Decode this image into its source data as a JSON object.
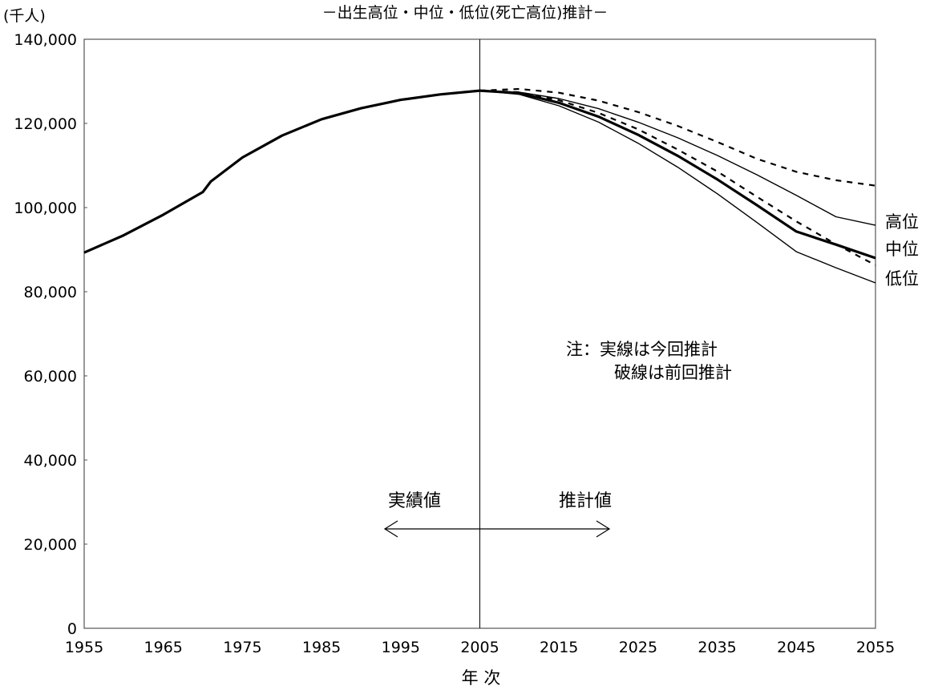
{
  "chart_data": {
    "type": "line",
    "title": "－出生高位・中位・低位(死亡高位)推計－",
    "ylabel": "(千人)",
    "xlabel": "年 次",
    "xlim": [
      1955,
      2055
    ],
    "ylim": [
      0,
      140000
    ],
    "x_ticks": [
      1955,
      1965,
      1975,
      1985,
      1995,
      2005,
      2015,
      2025,
      2035,
      2045,
      2055
    ],
    "x_tick_labels": [
      "1955",
      "1965",
      "1975",
      "1985",
      "1995",
      "2005",
      "2015",
      "2025",
      "2035",
      "2045",
      "2055"
    ],
    "y_ticks": [
      0,
      20000,
      40000,
      60000,
      80000,
      100000,
      120000,
      140000
    ],
    "y_tick_labels": [
      "0",
      "20,000",
      "40,000",
      "60,000",
      "80,000",
      "100,000",
      "120,000",
      "140,000"
    ],
    "grid": false,
    "divider_year": 2005,
    "series": [
      {
        "name": "実績値",
        "style": "solid-thick",
        "x": [
          1955,
          1960,
          1965,
          1970,
          1971,
          1975,
          1980,
          1985,
          1990,
          1995,
          2000,
          2005
        ],
        "y": [
          89300,
          93400,
          98300,
          103700,
          106200,
          111900,
          117100,
          121000,
          123600,
          125600,
          126900,
          127800
        ]
      },
      {
        "name": "高位",
        "style": "solid-thin",
        "x": [
          2005,
          2010,
          2015,
          2020,
          2025,
          2030,
          2035,
          2040,
          2045,
          2050,
          2055
        ],
        "y": [
          127800,
          127400,
          125900,
          123500,
          120300,
          116600,
          112400,
          107800,
          102900,
          97800,
          95800
        ]
      },
      {
        "name": "中位",
        "style": "solid-thick",
        "x": [
          2005,
          2010,
          2015,
          2020,
          2025,
          2030,
          2035,
          2040,
          2045,
          2050,
          2055
        ],
        "y": [
          127800,
          127200,
          124900,
          121600,
          117300,
          112300,
          106700,
          100600,
          94300,
          91200,
          88000
        ]
      },
      {
        "name": "低位",
        "style": "solid-thin",
        "x": [
          2005,
          2010,
          2015,
          2020,
          2025,
          2030,
          2035,
          2040,
          2045,
          2050,
          2055
        ],
        "y": [
          127800,
          126900,
          124200,
          120300,
          115300,
          109600,
          103300,
          96500,
          89500,
          85700,
          82100
        ]
      },
      {
        "name": "高位",
        "style": "dashed",
        "x": [
          2005,
          2010,
          2015,
          2020,
          2025,
          2030,
          2035,
          2040,
          2045,
          2050,
          2055
        ],
        "y": [
          127800,
          128200,
          127300,
          125400,
          122700,
          119400,
          115600,
          111600,
          108500,
          106500,
          105200
        ]
      },
      {
        "name": "中位",
        "style": "dashed",
        "x": [
          2005,
          2010,
          2015,
          2020,
          2025,
          2030,
          2035,
          2040,
          2045,
          2050,
          2055
        ],
        "y": [
          127800,
          127400,
          125500,
          122500,
          118600,
          113800,
          108600,
          102600,
          96700,
          91300,
          86300
        ]
      }
    ],
    "end_labels": [
      "高位",
      "中位",
      "低位"
    ],
    "note_lines": [
      "注：実線は今回推計",
      "破線は前回推計"
    ],
    "region_labels": {
      "left": "実績値",
      "right": "推計値"
    }
  }
}
